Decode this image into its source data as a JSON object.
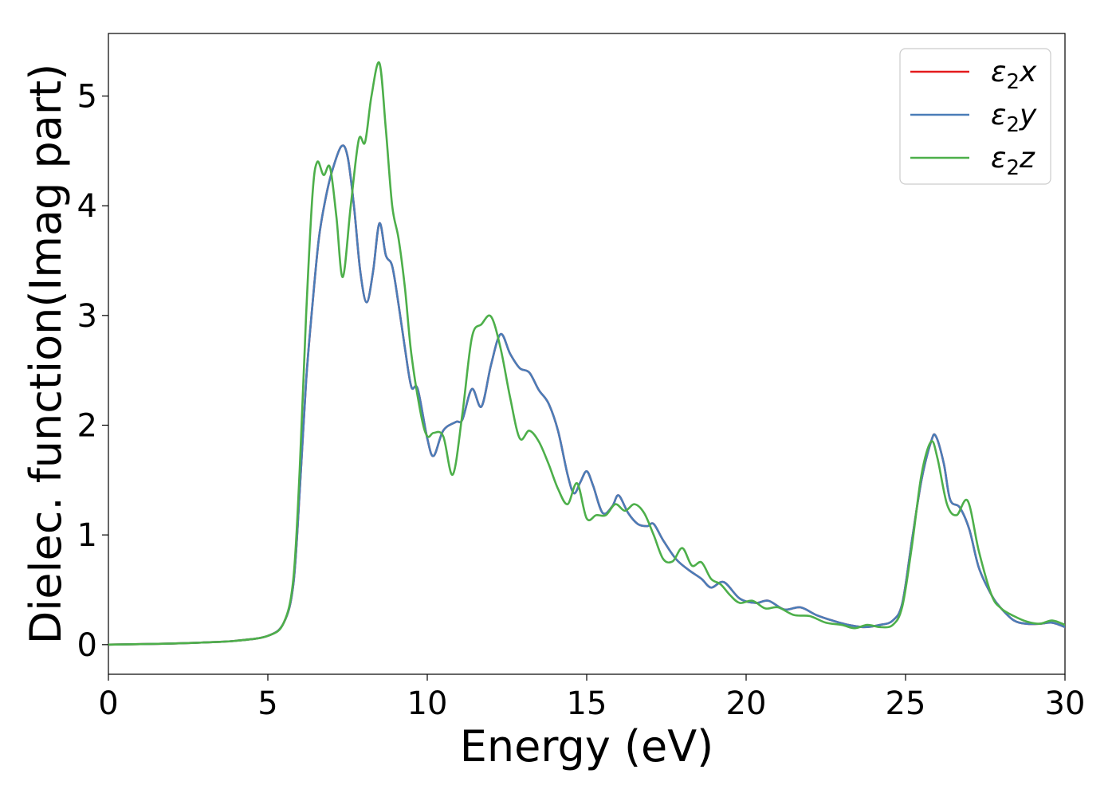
{
  "chart_data": {
    "type": "line",
    "title": "",
    "xlabel": "Energy (eV)",
    "ylabel": "Dielec. function(Imag part)",
    "xlim": [
      0,
      30
    ],
    "ylim": [
      -0.27,
      5.57
    ],
    "x_ticks": [
      0,
      5,
      10,
      15,
      20,
      25,
      30
    ],
    "y_ticks": [
      0,
      1,
      2,
      3,
      4,
      5
    ],
    "x_tick_labels": [
      "0",
      "5",
      "10",
      "15",
      "20",
      "25",
      "30"
    ],
    "y_tick_labels": [
      "0",
      "1",
      "2",
      "3",
      "4",
      "5"
    ],
    "grid": false,
    "legend_position": "top-right",
    "series": [
      {
        "name": "ε2x",
        "name_base": "ε",
        "name_sub": "2",
        "name_var": "x",
        "color": "#e41a1c",
        "points": [
          [
            0,
            0
          ],
          [
            1,
            0.005
          ],
          [
            2,
            0.01
          ],
          [
            3,
            0.02
          ],
          [
            4,
            0.035
          ],
          [
            5,
            0.08
          ],
          [
            5.5,
            0.2
          ],
          [
            5.8,
            0.55
          ],
          [
            6.0,
            1.4
          ],
          [
            6.2,
            2.4
          ],
          [
            6.4,
            3.1
          ],
          [
            6.6,
            3.7
          ],
          [
            6.8,
            4.05
          ],
          [
            7.0,
            4.3
          ],
          [
            7.3,
            4.54
          ],
          [
            7.5,
            4.45
          ],
          [
            7.7,
            4.0
          ],
          [
            7.9,
            3.4
          ],
          [
            8.1,
            3.12
          ],
          [
            8.3,
            3.4
          ],
          [
            8.5,
            3.84
          ],
          [
            8.7,
            3.55
          ],
          [
            8.9,
            3.45
          ],
          [
            9.1,
            3.1
          ],
          [
            9.3,
            2.7
          ],
          [
            9.5,
            2.35
          ],
          [
            9.7,
            2.33
          ],
          [
            10.0,
            1.88
          ],
          [
            10.2,
            1.72
          ],
          [
            10.5,
            1.95
          ],
          [
            10.9,
            2.03
          ],
          [
            11.1,
            2.05
          ],
          [
            11.4,
            2.33
          ],
          [
            11.7,
            2.17
          ],
          [
            12.0,
            2.55
          ],
          [
            12.3,
            2.83
          ],
          [
            12.6,
            2.65
          ],
          [
            12.9,
            2.52
          ],
          [
            13.2,
            2.48
          ],
          [
            13.5,
            2.32
          ],
          [
            13.8,
            2.2
          ],
          [
            14.1,
            1.95
          ],
          [
            14.4,
            1.55
          ],
          [
            14.6,
            1.38
          ],
          [
            14.8,
            1.48
          ],
          [
            15.0,
            1.58
          ],
          [
            15.2,
            1.45
          ],
          [
            15.5,
            1.2
          ],
          [
            15.8,
            1.26
          ],
          [
            16.0,
            1.36
          ],
          [
            16.3,
            1.2
          ],
          [
            16.6,
            1.1
          ],
          [
            16.9,
            1.08
          ],
          [
            17.1,
            1.1
          ],
          [
            17.4,
            0.95
          ],
          [
            17.8,
            0.78
          ],
          [
            18.2,
            0.68
          ],
          [
            18.6,
            0.6
          ],
          [
            18.9,
            0.52
          ],
          [
            19.3,
            0.57
          ],
          [
            19.8,
            0.42
          ],
          [
            20.3,
            0.38
          ],
          [
            20.7,
            0.4
          ],
          [
            21.2,
            0.32
          ],
          [
            21.7,
            0.34
          ],
          [
            22.2,
            0.27
          ],
          [
            22.7,
            0.22
          ],
          [
            23.2,
            0.18
          ],
          [
            23.7,
            0.16
          ],
          [
            24.2,
            0.18
          ],
          [
            24.6,
            0.22
          ],
          [
            24.9,
            0.38
          ],
          [
            25.2,
            0.95
          ],
          [
            25.5,
            1.5
          ],
          [
            25.8,
            1.85
          ],
          [
            25.95,
            1.9
          ],
          [
            26.2,
            1.65
          ],
          [
            26.4,
            1.32
          ],
          [
            26.7,
            1.25
          ],
          [
            27.0,
            1.05
          ],
          [
            27.3,
            0.7
          ],
          [
            27.7,
            0.45
          ],
          [
            28.0,
            0.33
          ],
          [
            28.4,
            0.22
          ],
          [
            28.8,
            0.19
          ],
          [
            29.2,
            0.19
          ],
          [
            29.6,
            0.2
          ],
          [
            30.0,
            0.16
          ]
        ]
      },
      {
        "name": "ε2y",
        "name_base": "ε",
        "name_sub": "2",
        "name_var": "y",
        "color": "#4a7db8",
        "points": [
          [
            0,
            0
          ],
          [
            1,
            0.005
          ],
          [
            2,
            0.01
          ],
          [
            3,
            0.02
          ],
          [
            4,
            0.035
          ],
          [
            5,
            0.08
          ],
          [
            5.5,
            0.2
          ],
          [
            5.8,
            0.55
          ],
          [
            6.0,
            1.4
          ],
          [
            6.2,
            2.4
          ],
          [
            6.4,
            3.1
          ],
          [
            6.6,
            3.7
          ],
          [
            6.8,
            4.05
          ],
          [
            7.0,
            4.3
          ],
          [
            7.3,
            4.54
          ],
          [
            7.5,
            4.45
          ],
          [
            7.7,
            4.0
          ],
          [
            7.9,
            3.4
          ],
          [
            8.1,
            3.12
          ],
          [
            8.3,
            3.4
          ],
          [
            8.5,
            3.84
          ],
          [
            8.7,
            3.55
          ],
          [
            8.9,
            3.45
          ],
          [
            9.1,
            3.1
          ],
          [
            9.3,
            2.7
          ],
          [
            9.5,
            2.35
          ],
          [
            9.7,
            2.33
          ],
          [
            10.0,
            1.88
          ],
          [
            10.2,
            1.72
          ],
          [
            10.5,
            1.95
          ],
          [
            10.9,
            2.03
          ],
          [
            11.1,
            2.05
          ],
          [
            11.4,
            2.33
          ],
          [
            11.7,
            2.17
          ],
          [
            12.0,
            2.55
          ],
          [
            12.3,
            2.83
          ],
          [
            12.6,
            2.65
          ],
          [
            12.9,
            2.52
          ],
          [
            13.2,
            2.48
          ],
          [
            13.5,
            2.32
          ],
          [
            13.8,
            2.2
          ],
          [
            14.1,
            1.95
          ],
          [
            14.4,
            1.55
          ],
          [
            14.6,
            1.38
          ],
          [
            14.8,
            1.48
          ],
          [
            15.0,
            1.58
          ],
          [
            15.2,
            1.45
          ],
          [
            15.5,
            1.2
          ],
          [
            15.8,
            1.26
          ],
          [
            16.0,
            1.36
          ],
          [
            16.3,
            1.2
          ],
          [
            16.6,
            1.1
          ],
          [
            16.9,
            1.08
          ],
          [
            17.1,
            1.1
          ],
          [
            17.4,
            0.95
          ],
          [
            17.8,
            0.78
          ],
          [
            18.2,
            0.68
          ],
          [
            18.6,
            0.6
          ],
          [
            18.9,
            0.52
          ],
          [
            19.3,
            0.57
          ],
          [
            19.8,
            0.42
          ],
          [
            20.3,
            0.38
          ],
          [
            20.7,
            0.4
          ],
          [
            21.2,
            0.32
          ],
          [
            21.7,
            0.34
          ],
          [
            22.2,
            0.27
          ],
          [
            22.7,
            0.22
          ],
          [
            23.2,
            0.18
          ],
          [
            23.7,
            0.16
          ],
          [
            24.2,
            0.18
          ],
          [
            24.6,
            0.22
          ],
          [
            24.9,
            0.38
          ],
          [
            25.2,
            0.95
          ],
          [
            25.5,
            1.5
          ],
          [
            25.8,
            1.85
          ],
          [
            25.95,
            1.9
          ],
          [
            26.2,
            1.65
          ],
          [
            26.4,
            1.32
          ],
          [
            26.7,
            1.25
          ],
          [
            27.0,
            1.05
          ],
          [
            27.3,
            0.7
          ],
          [
            27.7,
            0.45
          ],
          [
            28.0,
            0.33
          ],
          [
            28.4,
            0.22
          ],
          [
            28.8,
            0.19
          ],
          [
            29.2,
            0.19
          ],
          [
            29.6,
            0.2
          ],
          [
            30.0,
            0.16
          ]
        ]
      },
      {
        "name": "ε2z",
        "name_base": "ε",
        "name_sub": "2",
        "name_var": "z",
        "color": "#4daf4a",
        "points": [
          [
            0,
            0
          ],
          [
            1,
            0.005
          ],
          [
            2,
            0.01
          ],
          [
            3,
            0.02
          ],
          [
            4,
            0.035
          ],
          [
            5,
            0.08
          ],
          [
            5.5,
            0.2
          ],
          [
            5.8,
            0.6
          ],
          [
            6.0,
            1.6
          ],
          [
            6.2,
            3.0
          ],
          [
            6.4,
            4.1
          ],
          [
            6.55,
            4.4
          ],
          [
            6.75,
            4.28
          ],
          [
            6.95,
            4.35
          ],
          [
            7.15,
            3.9
          ],
          [
            7.35,
            3.35
          ],
          [
            7.6,
            4.0
          ],
          [
            7.85,
            4.6
          ],
          [
            8.05,
            4.58
          ],
          [
            8.25,
            5.0
          ],
          [
            8.5,
            5.3
          ],
          [
            8.7,
            4.7
          ],
          [
            8.9,
            4.0
          ],
          [
            9.1,
            3.7
          ],
          [
            9.3,
            3.25
          ],
          [
            9.5,
            2.65
          ],
          [
            9.8,
            2.1
          ],
          [
            10.0,
            1.9
          ],
          [
            10.2,
            1.93
          ],
          [
            10.5,
            1.9
          ],
          [
            10.8,
            1.55
          ],
          [
            11.1,
            2.1
          ],
          [
            11.4,
            2.8
          ],
          [
            11.7,
            2.92
          ],
          [
            12.0,
            2.99
          ],
          [
            12.3,
            2.7
          ],
          [
            12.6,
            2.25
          ],
          [
            12.9,
            1.88
          ],
          [
            13.2,
            1.95
          ],
          [
            13.5,
            1.85
          ],
          [
            13.8,
            1.65
          ],
          [
            14.1,
            1.42
          ],
          [
            14.4,
            1.28
          ],
          [
            14.7,
            1.47
          ],
          [
            15.0,
            1.15
          ],
          [
            15.3,
            1.18
          ],
          [
            15.6,
            1.18
          ],
          [
            15.9,
            1.28
          ],
          [
            16.2,
            1.22
          ],
          [
            16.5,
            1.28
          ],
          [
            16.8,
            1.2
          ],
          [
            17.1,
            1.0
          ],
          [
            17.4,
            0.78
          ],
          [
            17.7,
            0.76
          ],
          [
            18.0,
            0.88
          ],
          [
            18.3,
            0.72
          ],
          [
            18.6,
            0.75
          ],
          [
            18.9,
            0.6
          ],
          [
            19.2,
            0.55
          ],
          [
            19.5,
            0.45
          ],
          [
            19.8,
            0.38
          ],
          [
            20.2,
            0.4
          ],
          [
            20.6,
            0.33
          ],
          [
            21.0,
            0.34
          ],
          [
            21.5,
            0.27
          ],
          [
            22.0,
            0.26
          ],
          [
            22.5,
            0.2
          ],
          [
            23.0,
            0.18
          ],
          [
            23.4,
            0.15
          ],
          [
            23.8,
            0.18
          ],
          [
            24.2,
            0.16
          ],
          [
            24.6,
            0.18
          ],
          [
            24.9,
            0.35
          ],
          [
            25.2,
            0.9
          ],
          [
            25.5,
            1.55
          ],
          [
            25.8,
            1.85
          ],
          [
            26.0,
            1.7
          ],
          [
            26.3,
            1.28
          ],
          [
            26.6,
            1.18
          ],
          [
            26.95,
            1.31
          ],
          [
            27.3,
            0.85
          ],
          [
            27.7,
            0.45
          ],
          [
            28.0,
            0.33
          ],
          [
            28.4,
            0.26
          ],
          [
            28.8,
            0.21
          ],
          [
            29.2,
            0.19
          ],
          [
            29.6,
            0.22
          ],
          [
            30.0,
            0.18
          ]
        ]
      }
    ]
  }
}
